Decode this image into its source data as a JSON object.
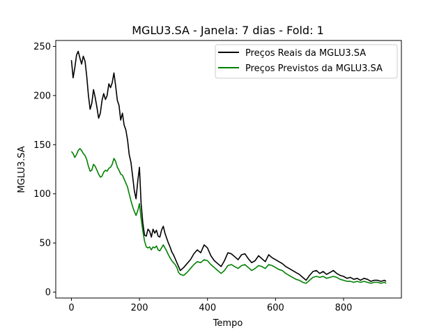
{
  "chart_data": {
    "type": "line",
    "title": "MGLU3.SA - Janela: 7 dias - Fold: 1",
    "xlabel": "Tempo",
    "ylabel": "MGLU3.SA",
    "xlim": [
      -46,
      970
    ],
    "ylim": [
      -6,
      256
    ],
    "xticks": [
      0,
      200,
      400,
      600,
      800
    ],
    "yticks": [
      0,
      50,
      100,
      150,
      200,
      250
    ],
    "grid": false,
    "legend_position": "top-right",
    "series": [
      {
        "name": "Preços Reais da MGLU3.SA",
        "color": "#000000",
        "x": [
          0,
          5,
          10,
          15,
          20,
          25,
          30,
          35,
          40,
          45,
          50,
          55,
          60,
          65,
          70,
          75,
          80,
          85,
          90,
          95,
          100,
          105,
          110,
          115,
          120,
          125,
          130,
          135,
          140,
          145,
          150,
          155,
          160,
          165,
          170,
          175,
          180,
          185,
          190,
          195,
          200,
          205,
          210,
          215,
          220,
          225,
          230,
          235,
          240,
          245,
          250,
          255,
          260,
          265,
          270,
          275,
          280,
          285,
          290,
          295,
          300,
          305,
          310,
          315,
          320,
          330,
          340,
          350,
          360,
          370,
          380,
          390,
          400,
          410,
          420,
          430,
          440,
          450,
          460,
          470,
          480,
          490,
          500,
          510,
          520,
          530,
          540,
          550,
          560,
          570,
          580,
          590,
          600,
          610,
          620,
          630,
          640,
          650,
          660,
          670,
          680,
          690,
          700,
          710,
          720,
          730,
          740,
          750,
          760,
          770,
          780,
          790,
          800,
          810,
          820,
          830,
          840,
          850,
          860,
          870,
          880,
          890,
          900,
          910,
          920,
          925
        ],
        "y": [
          236,
          218,
          228,
          241,
          245,
          238,
          232,
          240,
          235,
          220,
          200,
          186,
          192,
          206,
          198,
          188,
          177,
          182,
          195,
          202,
          196,
          200,
          212,
          208,
          213,
          223,
          210,
          195,
          190,
          175,
          182,
          170,
          165,
          155,
          140,
          132,
          118,
          103,
          95,
          113,
          127,
          90,
          70,
          58,
          57,
          64,
          62,
          56,
          64,
          60,
          63,
          57,
          56,
          63,
          67,
          60,
          55,
          50,
          46,
          41,
          38,
          34,
          30,
          26,
          22,
          25,
          29,
          33,
          39,
          43,
          40,
          48,
          45,
          37,
          32,
          29,
          26,
          32,
          40,
          39,
          36,
          33,
          38,
          39,
          34,
          30,
          32,
          37,
          34,
          31,
          38,
          35,
          33,
          31,
          29,
          26,
          24,
          22,
          20,
          18,
          15,
          12,
          17,
          21,
          22,
          19,
          21,
          18,
          20,
          22,
          19,
          17,
          16,
          14,
          15,
          13,
          14,
          12,
          14,
          13,
          11,
          12,
          12,
          11,
          12,
          11
        ]
      },
      {
        "name": "Preços Previstos da MGLU3.SA",
        "color": "#008000",
        "x": [
          0,
          5,
          10,
          15,
          20,
          25,
          30,
          35,
          40,
          45,
          50,
          55,
          60,
          65,
          70,
          75,
          80,
          85,
          90,
          95,
          100,
          105,
          110,
          115,
          120,
          125,
          130,
          135,
          140,
          145,
          150,
          155,
          160,
          165,
          170,
          175,
          180,
          185,
          190,
          195,
          200,
          205,
          210,
          215,
          220,
          225,
          230,
          235,
          240,
          245,
          250,
          255,
          260,
          265,
          270,
          275,
          280,
          285,
          290,
          295,
          300,
          305,
          310,
          315,
          320,
          330,
          340,
          350,
          360,
          370,
          380,
          390,
          400,
          410,
          420,
          430,
          440,
          450,
          460,
          470,
          480,
          490,
          500,
          510,
          520,
          530,
          540,
          550,
          560,
          570,
          580,
          590,
          600,
          610,
          620,
          630,
          640,
          650,
          660,
          670,
          680,
          690,
          700,
          710,
          720,
          730,
          740,
          750,
          760,
          770,
          780,
          790,
          800,
          810,
          820,
          830,
          840,
          850,
          860,
          870,
          880,
          890,
          900,
          910,
          920,
          925
        ],
        "y": [
          143,
          141,
          137,
          140,
          144,
          146,
          144,
          141,
          139,
          135,
          128,
          123,
          124,
          130,
          128,
          124,
          120,
          117,
          118,
          122,
          124,
          123,
          126,
          127,
          130,
          136,
          133,
          127,
          124,
          120,
          119,
          115,
          111,
          107,
          100,
          93,
          87,
          82,
          78,
          83,
          90,
          75,
          62,
          52,
          46,
          45,
          46,
          43,
          46,
          45,
          47,
          43,
          42,
          45,
          48,
          45,
          42,
          38,
          35,
          32,
          30,
          28,
          25,
          20,
          18,
          17,
          20,
          24,
          28,
          31,
          30,
          33,
          32,
          28,
          25,
          22,
          19,
          22,
          27,
          28,
          26,
          24,
          27,
          28,
          25,
          22,
          24,
          27,
          26,
          24,
          28,
          27,
          25,
          23,
          22,
          19,
          17,
          15,
          13,
          12,
          10,
          9,
          12,
          15,
          16,
          15,
          16,
          14,
          15,
          16,
          15,
          13,
          12,
          11,
          11,
          10,
          11,
          10,
          11,
          10,
          9,
          10,
          10,
          9,
          10,
          9
        ]
      }
    ]
  }
}
